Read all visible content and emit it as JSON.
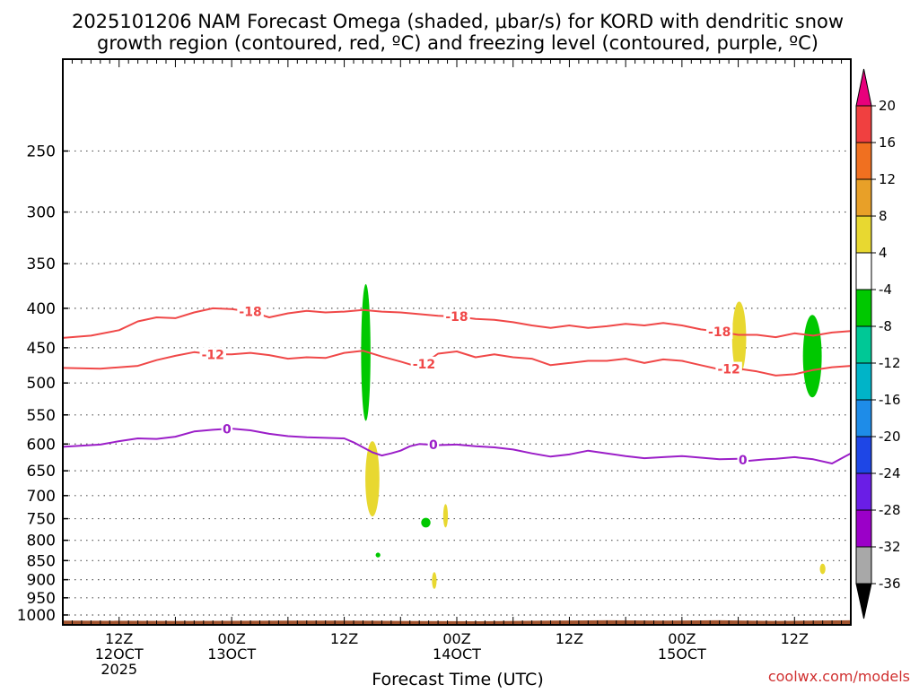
{
  "chart_data": {
    "type": "contour",
    "title_line1": "2025101206 NAM Forecast Omega (shaded, μbar/s) for KORD with dendritic snow",
    "title_line2": "growth region (contoured, red, ºC) and freezing level (contoured, purple, ºC)",
    "xlabel": "Forecast Time (UTC)",
    "credit": "coolwx.com/models",
    "x_range_hours": [
      0,
      84
    ],
    "y_axis": {
      "scale": "log",
      "reversed": true,
      "range_hpa": [
        1030,
        190
      ],
      "ticks": [
        "250",
        "300",
        "350",
        "400",
        "450",
        "500",
        "550",
        "600",
        "650",
        "700",
        "750",
        "800",
        "850",
        "900",
        "950",
        "1000"
      ]
    },
    "x_ticks": [
      {
        "hour": 6,
        "line1": "12Z",
        "line2": "12OCT",
        "line3": "2025"
      },
      {
        "hour": 18,
        "line1": "00Z",
        "line2": "13OCT",
        "line3": ""
      },
      {
        "hour": 30,
        "line1": "12Z",
        "line2": "",
        "line3": ""
      },
      {
        "hour": 42,
        "line1": "00Z",
        "line2": "14OCT",
        "line3": ""
      },
      {
        "hour": 54,
        "line1": "12Z",
        "line2": "",
        "line3": ""
      },
      {
        "hour": 66,
        "line1": "00Z",
        "line2": "15OCT",
        "line3": ""
      },
      {
        "hour": 78,
        "line1": "12Z",
        "line2": "",
        "line3": ""
      }
    ],
    "grid": true,
    "colorbar": {
      "labels": [
        "20",
        "16",
        "12",
        "8",
        "4",
        "-4",
        "-8",
        "-12",
        "-16",
        "-20",
        "-24",
        "-28",
        "-32",
        "-36"
      ],
      "colors": [
        "#e8007c",
        "#f04040",
        "#f07020",
        "#e8a028",
        "#e8d830",
        "#ffffff",
        "#00c800",
        "#00c896",
        "#00b4c8",
        "#1e8ce8",
        "#1e46e6",
        "#6a1ee6",
        "#9b00c8",
        "#a8a8a8",
        "#000000"
      ]
    },
    "contours": [
      {
        "name": "-18",
        "color": "#f04848",
        "label": "-18",
        "label_hours": [
          20,
          42,
          70
        ],
        "points": [
          [
            0,
            437
          ],
          [
            3,
            434
          ],
          [
            6,
            427
          ],
          [
            8,
            416
          ],
          [
            10,
            411
          ],
          [
            12,
            412
          ],
          [
            14,
            405
          ],
          [
            16,
            400
          ],
          [
            18,
            401
          ],
          [
            20,
            404
          ],
          [
            22,
            411
          ],
          [
            24,
            406
          ],
          [
            26,
            403
          ],
          [
            28,
            405
          ],
          [
            30,
            404
          ],
          [
            32,
            402
          ],
          [
            34,
            404
          ],
          [
            36,
            405
          ],
          [
            38,
            407
          ],
          [
            40,
            409
          ],
          [
            42,
            410
          ],
          [
            44,
            413
          ],
          [
            46,
            414
          ],
          [
            48,
            417
          ],
          [
            50,
            421
          ],
          [
            52,
            424
          ],
          [
            54,
            421
          ],
          [
            56,
            424
          ],
          [
            58,
            422
          ],
          [
            60,
            419
          ],
          [
            62,
            421
          ],
          [
            64,
            418
          ],
          [
            66,
            421
          ],
          [
            68,
            426
          ],
          [
            70,
            429
          ],
          [
            72,
            433
          ],
          [
            74,
            433
          ],
          [
            76,
            436
          ],
          [
            78,
            431
          ],
          [
            80,
            434
          ],
          [
            82,
            430
          ],
          [
            84,
            428
          ]
        ]
      },
      {
        "name": "-12",
        "color": "#f04848",
        "label": "-12",
        "label_hours": [
          16,
          38.5,
          71
        ],
        "points": [
          [
            0,
            478
          ],
          [
            4,
            479
          ],
          [
            8,
            475
          ],
          [
            10,
            467
          ],
          [
            12,
            461
          ],
          [
            14,
            456
          ],
          [
            16,
            459
          ],
          [
            18,
            459
          ],
          [
            20,
            457
          ],
          [
            22,
            460
          ],
          [
            24,
            465
          ],
          [
            26,
            463
          ],
          [
            28,
            464
          ],
          [
            30,
            457
          ],
          [
            32,
            454
          ],
          [
            34,
            462
          ],
          [
            36,
            469
          ],
          [
            38,
            477
          ],
          [
            40,
            458
          ],
          [
            42,
            455
          ],
          [
            44,
            463
          ],
          [
            46,
            459
          ],
          [
            48,
            463
          ],
          [
            50,
            465
          ],
          [
            52,
            474
          ],
          [
            54,
            471
          ],
          [
            56,
            468
          ],
          [
            58,
            468
          ],
          [
            60,
            465
          ],
          [
            62,
            471
          ],
          [
            64,
            466
          ],
          [
            66,
            468
          ],
          [
            68,
            474
          ],
          [
            70,
            480
          ],
          [
            72,
            479
          ],
          [
            74,
            483
          ],
          [
            76,
            489
          ],
          [
            78,
            487
          ],
          [
            80,
            481
          ],
          [
            82,
            477
          ],
          [
            84,
            475
          ]
        ]
      },
      {
        "name": "0",
        "color": "#9b1ec8",
        "label": "0",
        "label_hours": [
          17.5,
          39.5,
          72.5
        ],
        "points": [
          [
            0,
            605
          ],
          [
            4,
            601
          ],
          [
            6,
            595
          ],
          [
            8,
            590
          ],
          [
            10,
            591
          ],
          [
            12,
            587
          ],
          [
            14,
            578
          ],
          [
            16,
            575
          ],
          [
            18,
            573
          ],
          [
            20,
            576
          ],
          [
            22,
            582
          ],
          [
            24,
            586
          ],
          [
            26,
            588
          ],
          [
            28,
            589
          ],
          [
            30,
            590
          ],
          [
            31,
            597
          ],
          [
            32,
            606
          ],
          [
            33,
            615
          ],
          [
            34,
            621
          ],
          [
            35,
            617
          ],
          [
            36,
            612
          ],
          [
            37,
            604
          ],
          [
            38,
            600
          ],
          [
            40,
            602
          ],
          [
            42,
            601
          ],
          [
            44,
            604
          ],
          [
            46,
            606
          ],
          [
            48,
            610
          ],
          [
            50,
            617
          ],
          [
            52,
            623
          ],
          [
            54,
            619
          ],
          [
            56,
            612
          ],
          [
            58,
            617
          ],
          [
            60,
            622
          ],
          [
            62,
            626
          ],
          [
            64,
            624
          ],
          [
            66,
            622
          ],
          [
            68,
            625
          ],
          [
            70,
            628
          ],
          [
            72,
            627
          ],
          [
            73,
            631
          ],
          [
            75,
            628
          ],
          [
            76,
            627
          ],
          [
            78,
            624
          ],
          [
            80,
            628
          ],
          [
            82,
            636
          ],
          [
            84,
            617
          ]
        ]
      }
    ],
    "shaded": [
      {
        "name": "upward-strong-1",
        "value": "-4 to -8",
        "color": "#00c800",
        "h_center": 32.3,
        "h_half": 0.5,
        "p_top": 372,
        "p_bottom": 560
      },
      {
        "name": "upward-strong-2",
        "value": "-4 to -8",
        "color": "#00c800",
        "h_center": 79.9,
        "h_half": 1.0,
        "p_top": 408,
        "p_bottom": 522
      },
      {
        "name": "upward-small-1",
        "value": "-4 to -8",
        "color": "#00c800",
        "h_center": 38.7,
        "h_half": 0.5,
        "p_top": 748,
        "p_bottom": 770
      },
      {
        "name": "upward-small-2",
        "value": "-4 to -8",
        "color": "#00c800",
        "h_center": 33.6,
        "h_half": 0.25,
        "p_top": 830,
        "p_bottom": 842
      },
      {
        "name": "downward-1",
        "value": "4 to 8",
        "color": "#e8d830",
        "h_center": 33.0,
        "h_half": 0.75,
        "p_top": 595,
        "p_bottom": 745
      },
      {
        "name": "downward-2",
        "value": "4 to 8",
        "color": "#e8d830",
        "h_center": 72.1,
        "h_half": 0.75,
        "p_top": 392,
        "p_bottom": 488
      },
      {
        "name": "downward-3",
        "value": "4 to 8",
        "color": "#e8d830",
        "h_center": 40.8,
        "h_half": 0.25,
        "p_top": 718,
        "p_bottom": 770
      },
      {
        "name": "downward-4",
        "value": "4 to 8",
        "color": "#e8d830",
        "h_center": 39.6,
        "h_half": 0.25,
        "p_top": 880,
        "p_bottom": 925
      },
      {
        "name": "downward-5",
        "value": "4 to 8",
        "color": "#e8d830",
        "h_center": 81.0,
        "h_half": 0.3,
        "p_top": 858,
        "p_bottom": 885
      }
    ],
    "terrain": {
      "color": "#a0522d",
      "surface_pressure": [
        [
          0,
          1017
        ],
        [
          12,
          1018
        ],
        [
          24,
          1017
        ],
        [
          30,
          1017
        ],
        [
          36,
          1018
        ],
        [
          44,
          1019
        ],
        [
          52,
          1017
        ],
        [
          58,
          1016
        ],
        [
          64,
          1017
        ],
        [
          70,
          1016
        ],
        [
          76,
          1018
        ],
        [
          84,
          1016
        ]
      ]
    }
  }
}
